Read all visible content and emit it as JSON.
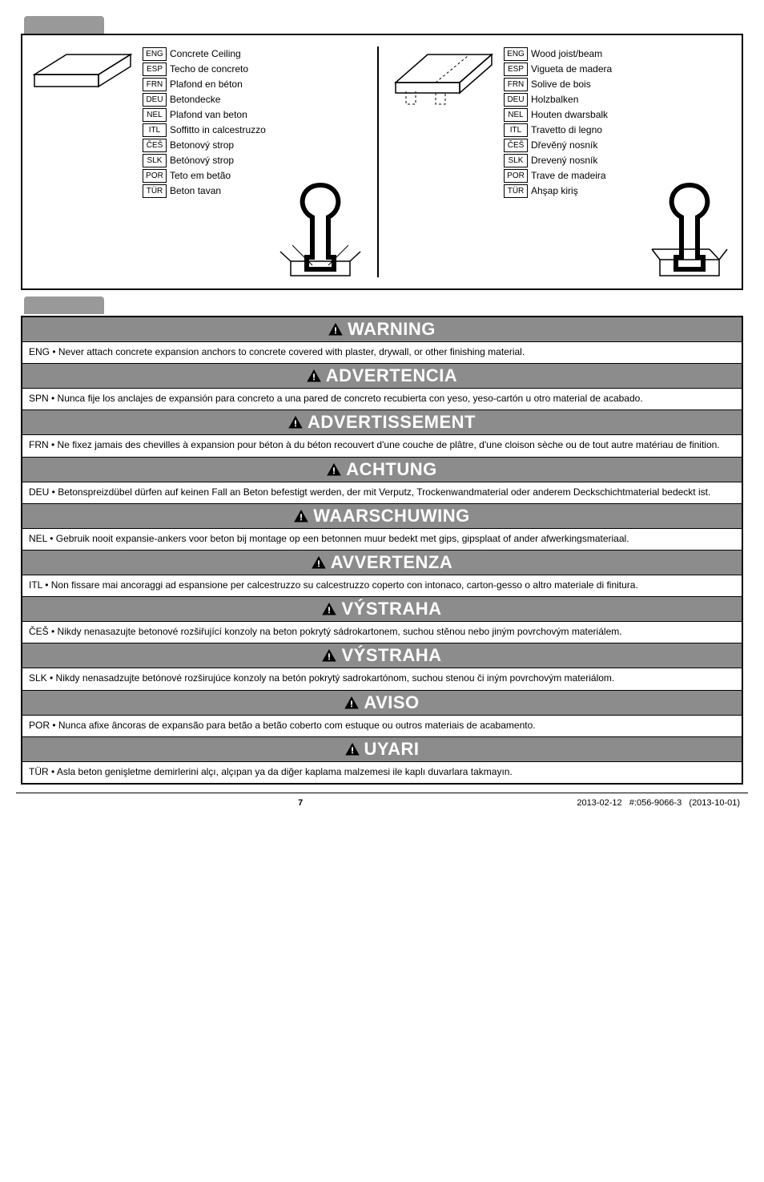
{
  "colors": {
    "tab_bg": "#999999",
    "warn_header_bg": "#8c8c8c",
    "warn_header_fg": "#ffffff",
    "border": "#000000",
    "page_bg": "#ffffff"
  },
  "diagram": {
    "left": {
      "rows": [
        {
          "code": "ENG",
          "text": "Concrete Ceiling"
        },
        {
          "code": "ESP",
          "text": "Techo de concreto"
        },
        {
          "code": "FRN",
          "text": "Plafond en béton"
        },
        {
          "code": "DEU",
          "text": "Betondecke"
        },
        {
          "code": "NEL",
          "text": "Plafond van beton"
        },
        {
          "code": "ITL",
          "text": "Soffitto in calcestruzzo"
        },
        {
          "code": "ČEŠ",
          "text": "Betonový strop"
        },
        {
          "code": "SLK",
          "text": "Betónový strop"
        },
        {
          "code": "POR",
          "text": "Teto em betão"
        },
        {
          "code": "TÜR",
          "text": "Beton tavan"
        }
      ]
    },
    "right": {
      "rows": [
        {
          "code": "ENG",
          "text": "Wood joist/beam"
        },
        {
          "code": "ESP",
          "text": "Vigueta de madera"
        },
        {
          "code": "FRN",
          "text": "Solive de bois"
        },
        {
          "code": "DEU",
          "text": "Holzbalken"
        },
        {
          "code": "NEL",
          "text": "Houten dwarsbalk"
        },
        {
          "code": "ITL",
          "text": "Travetto di legno"
        },
        {
          "code": "ČEŠ",
          "text": "Dřevěný nosník"
        },
        {
          "code": "SLK",
          "text": "Drevený nosník"
        },
        {
          "code": "POR",
          "text": "Trave de madeira"
        },
        {
          "code": "TÜR",
          "text": "Ahşap kiriş"
        }
      ]
    }
  },
  "warnings": [
    {
      "title": "WARNING",
      "code": "ENG",
      "body": "Never attach concrete expansion anchors to concrete covered with plaster, drywall, or other finishing material."
    },
    {
      "title": "ADVERTENCIA",
      "code": "SPN",
      "body": "Nunca fije los anclajes de expansión para concreto a una pared de concreto recubierta con yeso, yeso-cartón u otro material de acabado."
    },
    {
      "title": "ADVERTISSEMENT",
      "code": "FRN",
      "body": "Ne fixez jamais des chevilles à expansion pour béton à du béton recouvert d'une couche de plâtre, d'une cloison sèche ou de tout autre matériau de finition."
    },
    {
      "title": "ACHTUNG",
      "code": "DEU",
      "body": "Betonspreizdübel dürfen auf keinen Fall an Beton befestigt werden, der mit Verputz, Trockenwandmaterial oder anderem Deckschichtmaterial bedeckt ist."
    },
    {
      "title": "WAARSCHUWING",
      "code": "NEL",
      "body": "Gebruik nooit expansie-ankers voor beton bij montage op een betonnen muur bedekt met gips, gipsplaat of ander afwerkingsmateriaal."
    },
    {
      "title": "AVVERTENZA",
      "code": "ITL",
      "body": "Non fissare mai ancoraggi ad espansione per calcestruzzo su calcestruzzo coperto con intonaco, carton-gesso o altro materiale di finitura."
    },
    {
      "title": "VÝSTRAHA",
      "code": "ČEŠ",
      "body": "Nikdy nenasazujte betonové rozšiřující konzoly na beton pokrytý sádrokartonem, suchou stěnou nebo jiným povrchovým materiálem."
    },
    {
      "title": "VÝSTRAHA",
      "code": "SLK",
      "body": "Nikdy nenasadzujte betónové rozširujúce konzoly na betón pokrytý sadrokartónom, suchou stenou či iným povrchovým materiálom."
    },
    {
      "title": "AVISO",
      "code": "POR",
      "body": "Nunca afixe âncoras de expansão para betão a betão coberto com estuque ou outros materiais de acabamento."
    },
    {
      "title": "UYARI",
      "code": "TÜR",
      "body": "Asla beton genişletme demirlerini alçı, alçıpan ya da diğer kaplama malzemesi ile kaplı duvarlara takmayın."
    }
  ],
  "footer": {
    "page": "7",
    "date": "2013-02-12",
    "doc": "#:056-9066-3",
    "rev": "(2013-10-01)"
  }
}
